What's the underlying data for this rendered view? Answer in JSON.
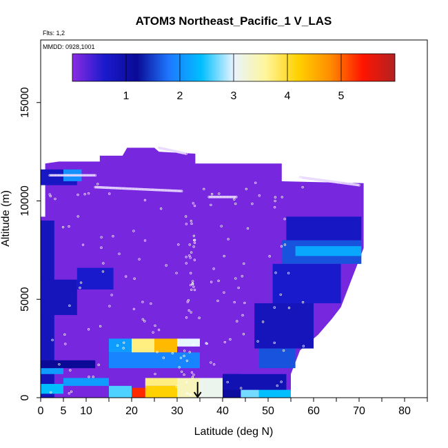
{
  "chart_data": {
    "type": "heatmap",
    "title": "ATOM3 Northeast_Pacific_1 V_LAS",
    "corner_label_1": "Flts: 1,2",
    "corner_label_2": "MMDD: 0928,1001",
    "xlabel": "Latitude (deg N)",
    "ylabel": "Altitude (m)",
    "xlim": [
      0,
      85
    ],
    "ylim": [
      0,
      17500
    ],
    "xticks": [
      0,
      5,
      10,
      20,
      30,
      40,
      50,
      60,
      70,
      80
    ],
    "yticks": [
      0,
      5000,
      10000,
      15000
    ],
    "colorbar": {
      "range": [
        0,
        6
      ],
      "ticks": [
        1,
        2,
        3,
        4,
        5
      ],
      "colors": [
        "#8a2be2",
        "#1a1acd",
        "#0a0a96",
        "#1e78ff",
        "#00bfff",
        "#e8f4ff",
        "#fff59a",
        "#ffd100",
        "#ff8c00",
        "#ff1500",
        "#b22222"
      ]
    },
    "marker": {
      "label": "arrow",
      "x": 34.5,
      "y_start": 800,
      "y_end": 0
    },
    "background_fill": {
      "value": 0.1,
      "x_range": [
        0,
        70.5
      ],
      "y_range": [
        0,
        12500
      ]
    },
    "data_regions": [
      {
        "x": [
          0,
          70.5
        ],
        "y": [
          0,
          11500
        ],
        "value": 0.1
      },
      {
        "x": [
          53,
          70.5
        ],
        "y": [
          6800,
          8000
        ],
        "value": 1.6
      },
      {
        "x": [
          56,
          70.5
        ],
        "y": [
          7200,
          7700
        ],
        "value": 2.2
      },
      {
        "x": [
          54,
          70.5
        ],
        "y": [
          8000,
          9200
        ],
        "value": 0.7
      },
      {
        "x": [
          51,
          66
        ],
        "y": [
          4800,
          6800
        ],
        "value": 0.6
      },
      {
        "x": [
          47,
          60
        ],
        "y": [
          2500,
          4800
        ],
        "value": 0.8
      },
      {
        "x": [
          48,
          56
        ],
        "y": [
          1500,
          2500
        ],
        "value": 1.6
      },
      {
        "x": [
          0,
          3
        ],
        "y": [
          0,
          9000
        ],
        "value": 0.8
      },
      {
        "x": [
          0,
          12
        ],
        "y": [
          1500,
          1900
        ],
        "value": 1.2
      },
      {
        "x": [
          0,
          8
        ],
        "y": [
          4200,
          6000
        ],
        "value": 0.8
      },
      {
        "x": [
          8,
          16
        ],
        "y": [
          5500,
          6600
        ],
        "value": 0.6
      },
      {
        "x": [
          0,
          8
        ],
        "y": [
          10800,
          11600
        ],
        "value": 0.7
      },
      {
        "x": [
          5,
          9
        ],
        "y": [
          11000,
          11600
        ],
        "value": 2.0
      },
      {
        "x": [
          0,
          5
        ],
        "y": [
          1200,
          1500
        ],
        "value": 2.1
      },
      {
        "x": [
          0,
          5
        ],
        "y": [
          200,
          700
        ],
        "value": 2.4
      },
      {
        "x": [
          5,
          15
        ],
        "y": [
          600,
          1000
        ],
        "value": 2.1
      },
      {
        "x": [
          15,
          20
        ],
        "y": [
          0,
          600
        ],
        "value": 2.6
      },
      {
        "x": [
          20,
          23
        ],
        "y": [
          0,
          500
        ],
        "value": 5.3
      },
      {
        "x": [
          23,
          30
        ],
        "y": [
          0,
          600
        ],
        "value": 4.2
      },
      {
        "x": [
          23,
          30
        ],
        "y": [
          600,
          1000
        ],
        "value": 3.7
      },
      {
        "x": [
          30,
          35
        ],
        "y": [
          0,
          1000
        ],
        "value": 3.4
      },
      {
        "x": [
          35,
          40
        ],
        "y": [
          0,
          1000
        ],
        "value": 3.1
      },
      {
        "x": [
          15,
          20
        ],
        "y": [
          2300,
          3000
        ],
        "value": 2.1
      },
      {
        "x": [
          20,
          25
        ],
        "y": [
          2300,
          3000
        ],
        "value": 3.7
      },
      {
        "x": [
          25,
          30
        ],
        "y": [
          2300,
          3000
        ],
        "value": 4.4
      },
      {
        "x": [
          30,
          35
        ],
        "y": [
          2600,
          3000
        ],
        "value": 3.0
      },
      {
        "x": [
          15,
          35
        ],
        "y": [
          1500,
          2300
        ],
        "value": 1.9
      },
      {
        "x": [
          40,
          44
        ],
        "y": [
          0,
          1200
        ],
        "value": 1.1
      },
      {
        "x": [
          44,
          48
        ],
        "y": [
          0,
          400
        ],
        "value": 2.7
      },
      {
        "x": [
          48,
          55
        ],
        "y": [
          0,
          400
        ],
        "value": 2.4
      },
      {
        "x": [
          40,
          54
        ],
        "y": [
          400,
          1200
        ],
        "value": 0.9
      }
    ],
    "flight_tracks": [
      {
        "x0": 12,
        "x1": 31,
        "y0": 10700,
        "y1": 10500
      },
      {
        "x0": 26,
        "x1": 32,
        "y0": 12700,
        "y1": 12400
      },
      {
        "x0": 57,
        "x1": 70,
        "y0": 11200,
        "y1": 10800
      },
      {
        "x0": 2,
        "x1": 12,
        "y0": 11300,
        "y1": 11300
      },
      {
        "x0": 37,
        "x1": 43,
        "y0": 10200,
        "y1": 10200
      }
    ]
  }
}
